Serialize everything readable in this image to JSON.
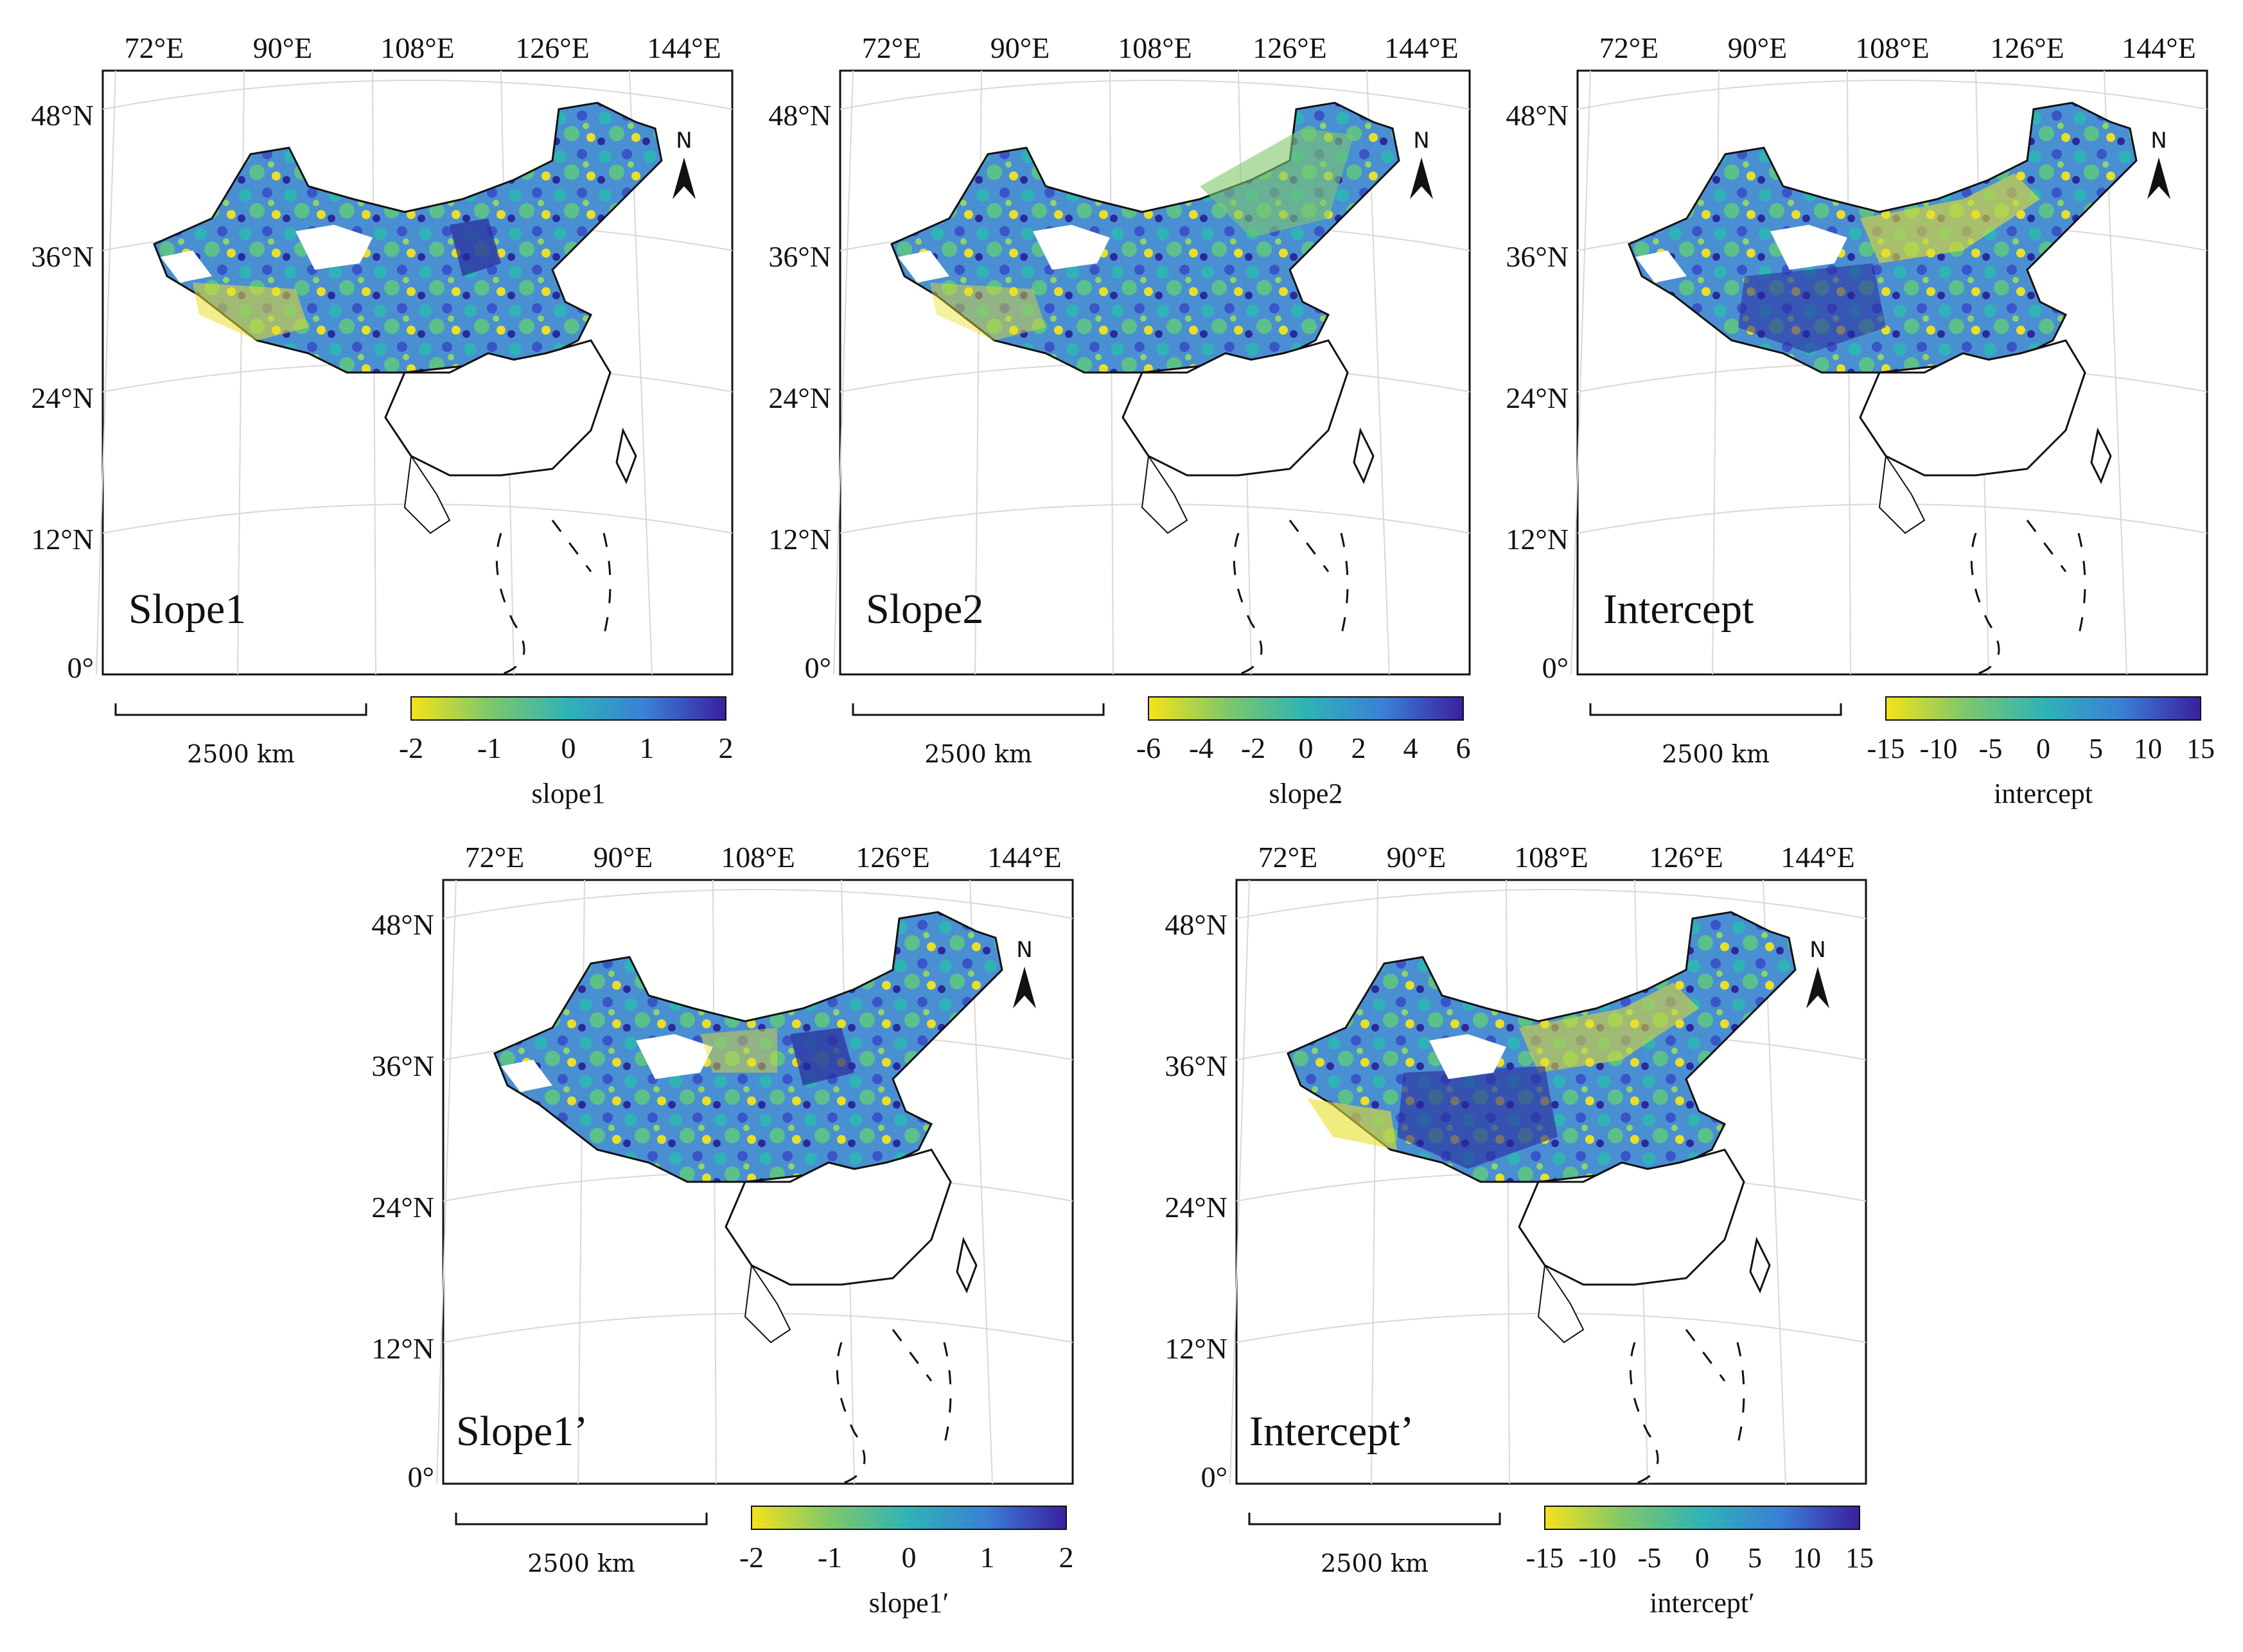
{
  "figure": {
    "colors": {
      "low": "#f5e21a",
      "low_mid": "#7ec86a",
      "mid": "#2fb3b6",
      "high_mid": "#3a7fd6",
      "high": "#3a1f9e",
      "no_data": "#ffffff",
      "border": "#111111"
    },
    "scale_bar_label": "2500 km",
    "north_label": "N",
    "panels": [
      {
        "id": "slope1",
        "title": "Slope1",
        "colorbar_label": "slope1",
        "colorbar_ticks": [
          "-2",
          "-1",
          "0",
          "1",
          "2"
        ],
        "lon_labels": [
          "72°E",
          "90°E",
          "108°E",
          "126°E",
          "144°E"
        ],
        "lat_labels": [
          "48°N",
          "36°N",
          "24°N",
          "12°N",
          "0°"
        ]
      },
      {
        "id": "slope2",
        "title": "Slope2",
        "colorbar_label": "slope2",
        "colorbar_ticks": [
          "-6",
          "-4",
          "-2",
          "0",
          "2",
          "4",
          "6"
        ],
        "lon_labels": [
          "72°E",
          "90°E",
          "108°E",
          "126°E",
          "144°E"
        ],
        "lat_labels": [
          "48°N",
          "36°N",
          "24°N",
          "12°N",
          "0°"
        ]
      },
      {
        "id": "intercept",
        "title": "Intercept",
        "colorbar_label": "intercept",
        "colorbar_ticks": [
          "-15",
          "-10",
          "-5",
          "0",
          "5",
          "10",
          "15"
        ],
        "lon_labels": [
          "72°E",
          "90°E",
          "108°E",
          "126°E",
          "144°E"
        ],
        "lat_labels": [
          "48°N",
          "36°N",
          "24°N",
          "12°N",
          "0°"
        ]
      },
      {
        "id": "slope1p",
        "title": "Slope1’",
        "colorbar_label": "slope1′",
        "colorbar_ticks": [
          "-2",
          "-1",
          "0",
          "1",
          "2"
        ],
        "lon_labels": [
          "72°E",
          "90°E",
          "108°E",
          "126°E",
          "144°E"
        ],
        "lat_labels": [
          "48°N",
          "36°N",
          "24°N",
          "12°N",
          "0°"
        ]
      },
      {
        "id": "interceptp",
        "title": "Intercept’",
        "colorbar_label": "intercept′",
        "colorbar_ticks": [
          "-15",
          "-10",
          "-5",
          "0",
          "5",
          "10",
          "15"
        ],
        "lon_labels": [
          "72°E",
          "90°E",
          "108°E",
          "126°E",
          "144°E"
        ],
        "lat_labels": [
          "48°N",
          "36°N",
          "24°N",
          "12°N",
          "0°"
        ]
      }
    ]
  }
}
